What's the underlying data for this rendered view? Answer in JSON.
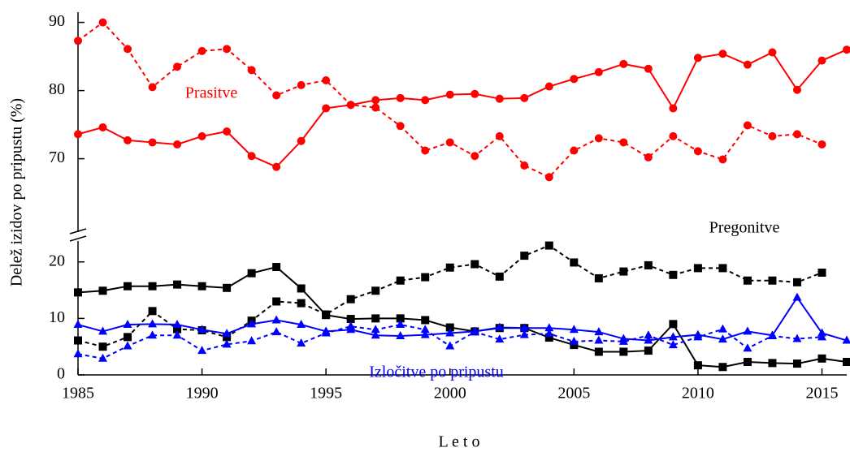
{
  "chart_data": {
    "type": "line",
    "x_label": "L e t o",
    "y_label": "Delež izidov po pripustu (%)",
    "annotations": [
      {
        "text": "Prasitve",
        "color": "#ff0000"
      },
      {
        "text": "Pregonitve",
        "color": "#000000"
      },
      {
        "text": "Izločitve po pripustu",
        "color": "#0000ff"
      }
    ],
    "xlim": [
      1985,
      2016
    ],
    "xticks": [
      1985,
      1990,
      1995,
      2000,
      2005,
      2010,
      2015
    ],
    "upper_ylim": [
      59,
      91.5
    ],
    "upper_yticks": [
      70,
      80,
      90
    ],
    "ylim": [
      0,
      23.7
    ],
    "yticks": [
      0,
      10,
      20
    ],
    "x": [
      1985,
      1986,
      1987,
      1988,
      1989,
      1990,
      1991,
      1992,
      1993,
      1994,
      1995,
      1996,
      1997,
      1998,
      1999,
      2000,
      2001,
      2002,
      2003,
      2004,
      2005,
      2006,
      2007,
      2008,
      2009,
      2010,
      2011,
      2012,
      2013,
      2014,
      2015,
      2016
    ],
    "series": [
      {
        "color": "#ff0000",
        "dash": true,
        "marker": "circle",
        "panel": "upper",
        "values": [
          87.3,
          90,
          86.1,
          80.5,
          83.5,
          85.8,
          86.1,
          83,
          79.3,
          80.8,
          81.5,
          77.9,
          77.5,
          74.8,
          71.2,
          72.4,
          70.4,
          73.3,
          69,
          67.3,
          71.2,
          73,
          72.4,
          70.2,
          73.3,
          71.1,
          69.9,
          74.9,
          73.3,
          73.6,
          72.1,
          null
        ]
      },
      {
        "color": "#ff0000",
        "dash": false,
        "marker": "circle",
        "panel": "upper",
        "values": [
          73.6,
          74.6,
          72.7,
          72.4,
          72.1,
          73.3,
          74,
          70.4,
          68.8,
          72.6,
          77.4,
          77.9,
          78.6,
          78.9,
          78.6,
          79.4,
          79.5,
          78.8,
          78.9,
          80.6,
          81.7,
          82.7,
          83.9,
          83.2,
          77.4,
          84.8,
          85.4,
          83.8,
          85.6,
          80.1,
          84.4,
          86
        ]
      },
      {
        "color": "#000000",
        "dash": false,
        "marker": "square",
        "panel": "lower",
        "values": [
          14.6,
          14.9,
          15.7,
          15.7,
          16,
          15.7,
          15.4,
          18,
          19.1,
          15.3,
          10.6,
          9.9,
          10,
          10,
          9.7,
          8.4,
          7.7,
          8.3,
          8.3,
          6.6,
          5.3,
          4.1,
          4.1,
          4.3,
          9,
          1.7,
          1.4,
          2.3,
          2.1,
          2,
          2.9,
          2.3
        ]
      },
      {
        "color": "#000000",
        "dash": true,
        "marker": "square",
        "panel": "lower",
        "values": [
          6.1,
          5,
          6.7,
          11.3,
          8.1,
          7.9,
          6.7,
          9.6,
          13,
          12.7,
          10.7,
          13.4,
          14.9,
          16.7,
          17.3,
          19,
          19.6,
          17.4,
          21.1,
          22.9,
          19.9,
          17.1,
          18.3,
          19.4,
          17.7,
          18.9,
          18.9,
          16.7,
          16.7,
          16.4,
          18.1,
          null
        ]
      },
      {
        "color": "#0000ff",
        "dash": false,
        "marker": "triangle",
        "panel": "lower",
        "values": [
          8.9,
          7.7,
          8.9,
          9,
          8.9,
          8,
          7.3,
          9,
          9.7,
          8.9,
          7.7,
          8,
          7,
          6.9,
          7.1,
          7.4,
          7.7,
          8.4,
          8.3,
          8.3,
          8,
          7.6,
          6.4,
          6.1,
          6.7,
          7.1,
          6.3,
          7.7,
          7,
          13.7,
          7.4,
          6.1
        ]
      },
      {
        "color": "#0000ff",
        "dash": true,
        "marker": "triangle",
        "panel": "lower",
        "values": [
          3.7,
          2.9,
          5.1,
          7,
          7,
          4.3,
          5.4,
          6,
          7.6,
          5.6,
          7.4,
          8.6,
          8,
          8.9,
          8,
          5.1,
          7.6,
          6.3,
          7.1,
          7.3,
          5.9,
          6.1,
          5.9,
          7,
          5.3,
          6.7,
          8.1,
          4.7,
          6.9,
          6.4,
          6.7,
          null
        ]
      }
    ]
  }
}
